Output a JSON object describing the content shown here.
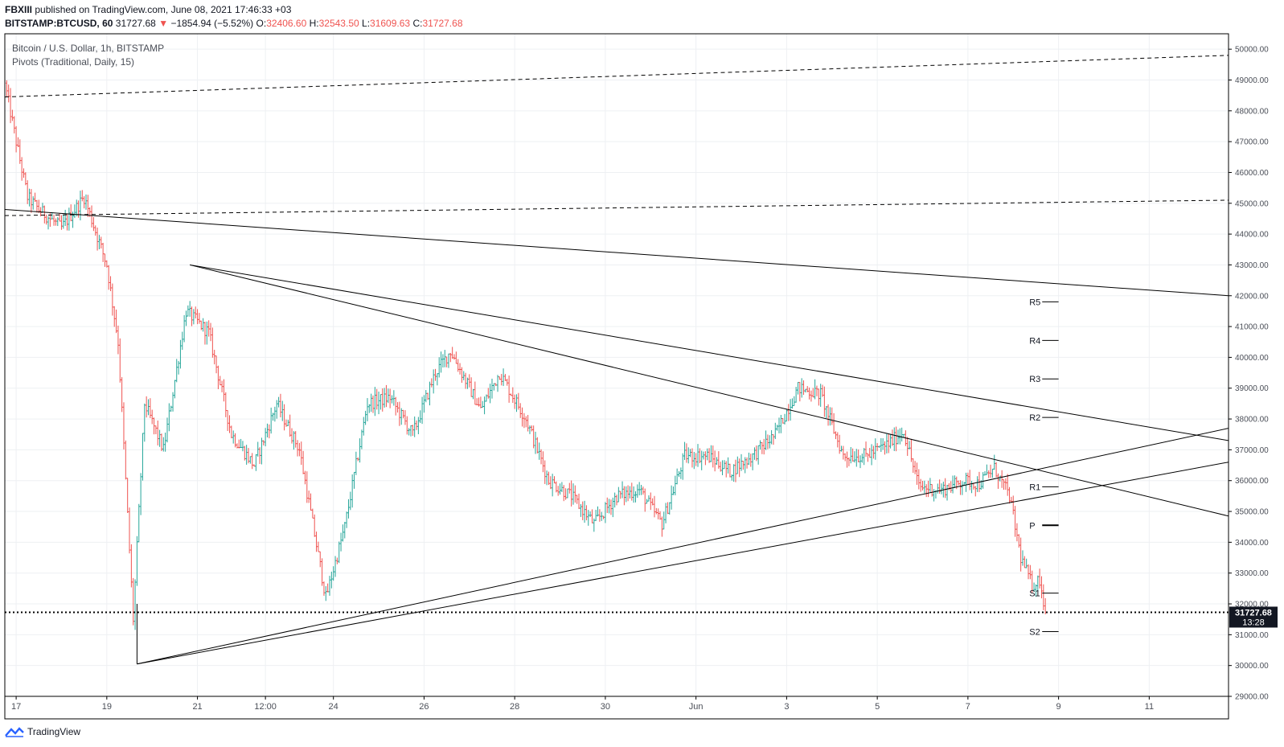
{
  "header": {
    "author": "FBXIII",
    "published_text": "published on TradingView.com, June 08, 2021 17:46:33 +03",
    "symbol": "BITSTAMP:BTCUSD, 60",
    "last": "31727.68",
    "change_arrow": "▼",
    "change": "−1854.94 (−5.52%)",
    "o_label": "O:",
    "o": "32406.60",
    "h_label": "H:",
    "h": "32543.50",
    "l_label": "L:",
    "l": "31609.63",
    "c_label": "C:",
    "c": "31727.68"
  },
  "legend": {
    "series": "Bitcoin / U.S. Dollar, 1h, BITSTAMP",
    "indicator": "Pivots (Traditional, Daily, 15)"
  },
  "footer": {
    "brand": "TradingView"
  },
  "price_tag": {
    "price": "31727.68",
    "countdown": "13:28"
  },
  "colors": {
    "up": "#26a69a",
    "down": "#ef5350",
    "line": "#000000",
    "grid": "#eef0f3"
  },
  "chart_data": {
    "type": "candlestick",
    "y_range": [
      29000,
      50500
    ],
    "y_ticks": [
      29000,
      30000,
      31000,
      32000,
      33000,
      34000,
      35000,
      36000,
      37000,
      38000,
      39000,
      40000,
      41000,
      42000,
      43000,
      44000,
      45000,
      46000,
      47000,
      48000,
      49000,
      50000
    ],
    "y_tick_labels": [
      "29000.00",
      "30000.00",
      "31000.00",
      "32000.00",
      "33000.00",
      "34000.00",
      "35000.00",
      "36000.00",
      "37000.00",
      "38000.00",
      "39000.00",
      "40000.00",
      "41000.00",
      "42000.00",
      "43000.00",
      "44000.00",
      "45000.00",
      "46000.00",
      "47000.00",
      "48000.00",
      "49000.00",
      "50000.00"
    ],
    "x_range_days": [
      "2021-05-16T18:00",
      "2021-06-12T18:00"
    ],
    "x_ticks": [
      {
        "label": "17",
        "t": "2021-05-17T00:00"
      },
      {
        "label": "19",
        "t": "2021-05-19T00:00"
      },
      {
        "label": "21",
        "t": "2021-05-21T00:00"
      },
      {
        "label": "12:00",
        "t": "2021-05-22T12:00"
      },
      {
        "label": "24",
        "t": "2021-05-24T00:00"
      },
      {
        "label": "26",
        "t": "2021-05-26T00:00"
      },
      {
        "label": "28",
        "t": "2021-05-28T00:00"
      },
      {
        "label": "30",
        "t": "2021-05-30T00:00"
      },
      {
        "label": "Jun",
        "t": "2021-06-01T00:00"
      },
      {
        "label": "3",
        "t": "2021-06-03T00:00"
      },
      {
        "label": "5",
        "t": "2021-06-05T00:00"
      },
      {
        "label": "7",
        "t": "2021-06-07T00:00"
      },
      {
        "label": "9",
        "t": "2021-06-09T00:00"
      },
      {
        "label": "11",
        "t": "2021-06-11T00:00"
      }
    ],
    "price_path": [
      {
        "t": "2021-05-16T18:00",
        "p": 48900
      },
      {
        "t": "2021-05-17T00:00",
        "p": 47000
      },
      {
        "t": "2021-05-17T06:00",
        "p": 45200
      },
      {
        "t": "2021-05-17T12:00",
        "p": 44800
      },
      {
        "t": "2021-05-18T00:00",
        "p": 44200
      },
      {
        "t": "2021-05-18T12:00",
        "p": 45200
      },
      {
        "t": "2021-05-19T00:00",
        "p": 43000
      },
      {
        "t": "2021-05-19T06:00",
        "p": 40500
      },
      {
        "t": "2021-05-19T14:00",
        "p": 31500
      },
      {
        "t": "2021-05-19T20:00",
        "p": 38500
      },
      {
        "t": "2021-05-20T06:00",
        "p": 37000
      },
      {
        "t": "2021-05-20T18:00",
        "p": 41500
      },
      {
        "t": "2021-05-21T06:00",
        "p": 40800
      },
      {
        "t": "2021-05-21T18:00",
        "p": 37500
      },
      {
        "t": "2021-05-22T06:00",
        "p": 36500
      },
      {
        "t": "2021-05-22T18:00",
        "p": 38500
      },
      {
        "t": "2021-05-23T06:00",
        "p": 37000
      },
      {
        "t": "2021-05-23T20:00",
        "p": 32200
      },
      {
        "t": "2021-05-24T06:00",
        "p": 34500
      },
      {
        "t": "2021-05-24T18:00",
        "p": 38500
      },
      {
        "t": "2021-05-25T06:00",
        "p": 38700
      },
      {
        "t": "2021-05-25T18:00",
        "p": 37500
      },
      {
        "t": "2021-05-26T06:00",
        "p": 39500
      },
      {
        "t": "2021-05-26T14:00",
        "p": 40200
      },
      {
        "t": "2021-05-27T06:00",
        "p": 38300
      },
      {
        "t": "2021-05-27T16:00",
        "p": 39500
      },
      {
        "t": "2021-05-28T06:00",
        "p": 38000
      },
      {
        "t": "2021-05-28T18:00",
        "p": 36000
      },
      {
        "t": "2021-05-29T06:00",
        "p": 35500
      },
      {
        "t": "2021-05-29T18:00",
        "p": 34600
      },
      {
        "t": "2021-05-30T06:00",
        "p": 35500
      },
      {
        "t": "2021-05-30T18:00",
        "p": 35700
      },
      {
        "t": "2021-05-31T06:00",
        "p": 34600
      },
      {
        "t": "2021-05-31T18:00",
        "p": 36800
      },
      {
        "t": "2021-06-01T06:00",
        "p": 36800
      },
      {
        "t": "2021-06-01T18:00",
        "p": 36300
      },
      {
        "t": "2021-06-02T06:00",
        "p": 36800
      },
      {
        "t": "2021-06-02T18:00",
        "p": 37500
      },
      {
        "t": "2021-06-03T06:00",
        "p": 39000
      },
      {
        "t": "2021-06-03T18:00",
        "p": 38800
      },
      {
        "t": "2021-06-04T06:00",
        "p": 36800
      },
      {
        "t": "2021-06-04T18:00",
        "p": 36800
      },
      {
        "t": "2021-06-05T06:00",
        "p": 37200
      },
      {
        "t": "2021-06-05T14:00",
        "p": 37600
      },
      {
        "t": "2021-06-05T22:00",
        "p": 35800
      },
      {
        "t": "2021-06-06T10:00",
        "p": 35700
      },
      {
        "t": "2021-06-06T22:00",
        "p": 36000
      },
      {
        "t": "2021-06-07T06:00",
        "p": 35900
      },
      {
        "t": "2021-06-07T14:00",
        "p": 36400
      },
      {
        "t": "2021-06-07T22:00",
        "p": 35500
      },
      {
        "t": "2021-06-08T04:00",
        "p": 33500
      },
      {
        "t": "2021-06-08T10:00",
        "p": 32600
      },
      {
        "t": "2021-06-08T14:00",
        "p": 32800
      },
      {
        "t": "2021-06-08T17:00",
        "p": 31727.68
      }
    ],
    "trendlines": [
      {
        "name": "long-resistance",
        "style": "solid",
        "from": {
          "t": "2021-05-16T18:00",
          "p": 44800
        },
        "to": {
          "t": "2021-06-12T18:00",
          "p": 42000
        }
      },
      {
        "name": "triangle-top-outer",
        "style": "solid",
        "from": {
          "t": "2021-05-20T20:00",
          "p": 43000
        },
        "to": {
          "t": "2021-06-12T18:00",
          "p": 37300
        }
      },
      {
        "name": "triangle-top-inner",
        "style": "solid",
        "from": {
          "t": "2021-05-20T20:00",
          "p": 43000
        },
        "to": {
          "t": "2021-06-12T18:00",
          "p": 34850
        }
      },
      {
        "name": "triangle-bottom-upper",
        "style": "solid",
        "from": {
          "t": "2021-05-19T16:00",
          "p": 30050
        },
        "to": {
          "t": "2021-06-12T18:00",
          "p": 37700
        }
      },
      {
        "name": "triangle-bottom-lower",
        "style": "solid",
        "from": {
          "t": "2021-05-19T16:00",
          "p": 30050
        },
        "to": {
          "t": "2021-06-12T18:00",
          "p": 36600
        }
      },
      {
        "name": "low-vertical",
        "style": "solid",
        "from": {
          "t": "2021-05-19T16:00",
          "p": 32000
        },
        "to": {
          "t": "2021-05-19T16:00",
          "p": 30050
        }
      },
      {
        "name": "dashed-upper",
        "style": "dashed",
        "from": {
          "t": "2021-05-16T18:00",
          "p": 48450
        },
        "to": {
          "t": "2021-06-12T18:00",
          "p": 49800
        }
      },
      {
        "name": "dashed-lower",
        "style": "dashed",
        "from": {
          "t": "2021-05-16T18:00",
          "p": 44600
        },
        "to": {
          "t": "2021-06-12T18:00",
          "p": 45100
        }
      }
    ],
    "current_price_line": 31727.68,
    "pivots": {
      "from": "2021-06-08T00:00",
      "to": "2021-06-09T00:00",
      "levels": [
        {
          "label": "R5",
          "p": 41800
        },
        {
          "label": "R4",
          "p": 40550
        },
        {
          "label": "R3",
          "p": 39300
        },
        {
          "label": "R2",
          "p": 38050
        },
        {
          "label": "R1",
          "p": 35800
        },
        {
          "label": "P",
          "p": 34550
        },
        {
          "label": "S1",
          "p": 32350
        },
        {
          "label": "S2",
          "p": 31100
        }
      ]
    }
  }
}
